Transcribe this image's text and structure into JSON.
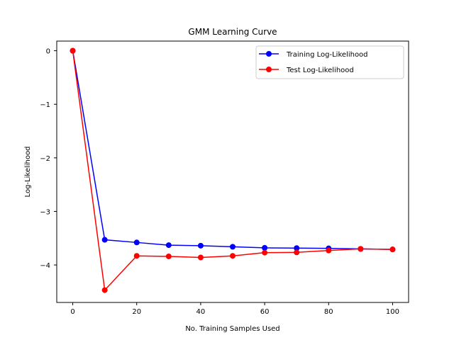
{
  "chart_data": {
    "type": "line",
    "title": "GMM Learning Curve",
    "xlabel": "No. Training Samples Used",
    "ylabel": "Log-Likelihood",
    "x": [
      0,
      10,
      20,
      30,
      40,
      50,
      60,
      70,
      80,
      90,
      100
    ],
    "xlim": [
      -5,
      105
    ],
    "ylim": [
      -4.7,
      0.18
    ],
    "xticks": [
      0,
      20,
      40,
      60,
      80,
      100
    ],
    "yticks": [
      0,
      -1,
      -2,
      -3,
      -4
    ],
    "ytick_labels": [
      "0",
      "−1",
      "−2",
      "−3",
      "−4"
    ],
    "grid": false,
    "legend_position": "top-right",
    "series": [
      {
        "name": "Training Log-Likelihood",
        "color": "#0000ff",
        "marker": "circle",
        "values": [
          0.0,
          -3.53,
          -3.58,
          -3.63,
          -3.64,
          -3.66,
          -3.68,
          -3.685,
          -3.69,
          -3.7,
          -3.71
        ]
      },
      {
        "name": "Test Log-Likelihood",
        "color": "#ff0000",
        "marker": "circle",
        "values": [
          0.0,
          -4.47,
          -3.83,
          -3.84,
          -3.86,
          -3.83,
          -3.77,
          -3.765,
          -3.73,
          -3.7,
          -3.71
        ]
      }
    ]
  }
}
